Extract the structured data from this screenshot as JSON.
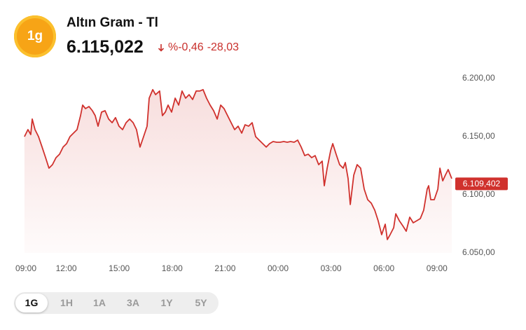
{
  "header": {
    "icon_text": "1g",
    "title": "Altın Gram - Tl",
    "price": "6.115,022",
    "change_percent": "%-0,46",
    "change": "-28,03"
  },
  "chart_data": {
    "type": "line",
    "color": "#d0312d",
    "grid": false,
    "xlim": [
      0,
      25
    ],
    "ylim": [
      6050,
      6200
    ],
    "xticks": [
      {
        "value": 0,
        "label": "09:00"
      },
      {
        "value": 3,
        "label": "12:00"
      },
      {
        "value": 6,
        "label": "15:00"
      },
      {
        "value": 9,
        "label": "18:00"
      },
      {
        "value": 12,
        "label": "21:00"
      },
      {
        "value": 15,
        "label": "00:00"
      },
      {
        "value": 18,
        "label": "03:00"
      },
      {
        "value": 21,
        "label": "06:00"
      },
      {
        "value": 24,
        "label": "09:00"
      }
    ],
    "yticks": [
      {
        "value": 6200,
        "label": "6.200,00"
      },
      {
        "value": 6150,
        "label": "6.150,00"
      },
      {
        "value": 6100,
        "label": "6.100,00"
      },
      {
        "value": 6050,
        "label": "6.050,00"
      }
    ],
    "current": {
      "value": 6109.402,
      "label": "6.109,402"
    },
    "series": [
      {
        "color": "#d0312d",
        "x": [
          0.63,
          0.83,
          0.99,
          1.07,
          1.23,
          1.43,
          1.63,
          1.83,
          2.02,
          2.22,
          2.42,
          2.62,
          2.82,
          3.02,
          3.21,
          3.41,
          3.61,
          3.81,
          3.93,
          4.09,
          4.29,
          4.48,
          4.64,
          4.8,
          5.0,
          5.2,
          5.4,
          5.6,
          5.79,
          5.99,
          6.19,
          6.39,
          6.59,
          6.79,
          6.98,
          7.18,
          7.38,
          7.58,
          7.7,
          7.9,
          8.06,
          8.29,
          8.45,
          8.61,
          8.77,
          8.97,
          9.17,
          9.37,
          9.56,
          9.76,
          9.96,
          10.16,
          10.36,
          10.56,
          10.75,
          10.95,
          11.15,
          11.35,
          11.55,
          11.75,
          11.94,
          12.14,
          12.34,
          12.54,
          12.74,
          12.94,
          13.13,
          13.33,
          13.53,
          13.73,
          13.93,
          14.13,
          14.33,
          14.52,
          14.72,
          14.92,
          15.12,
          15.32,
          15.52,
          15.71,
          15.91,
          16.11,
          16.31,
          16.51,
          16.71,
          16.9,
          17.1,
          17.3,
          17.5,
          17.62,
          17.78,
          17.98,
          18.1,
          18.29,
          18.49,
          18.69,
          18.81,
          18.97,
          19.09,
          19.29,
          19.48,
          19.68,
          19.88,
          20.08,
          20.28,
          20.48,
          20.67,
          20.87,
          21.07,
          21.19,
          21.35,
          21.55,
          21.67,
          21.87,
          22.06,
          22.26,
          22.46,
          22.66,
          22.86,
          23.06,
          23.25,
          23.45,
          23.53,
          23.65,
          23.85,
          24.05,
          24.17,
          24.33,
          24.48,
          24.64,
          24.84
        ],
        "values": [
          6150.0,
          6156.0,
          6151.8,
          6165.1,
          6156.0,
          6150.0,
          6141.0,
          6131.9,
          6122.9,
          6125.9,
          6131.9,
          6134.9,
          6141.0,
          6144.0,
          6150.0,
          6153.0,
          6156.0,
          6168.1,
          6177.1,
          6174.1,
          6175.9,
          6172.3,
          6168.1,
          6159.0,
          6171.1,
          6172.3,
          6165.1,
          6162.0,
          6166.3,
          6159.0,
          6156.0,
          6162.0,
          6165.1,
          6162.0,
          6156.0,
          6141.0,
          6150.0,
          6159.0,
          6183.1,
          6190.4,
          6186.1,
          6189.2,
          6168.1,
          6171.1,
          6177.1,
          6171.1,
          6183.1,
          6177.1,
          6189.2,
          6183.1,
          6186.1,
          6181.9,
          6189.2,
          6189.2,
          6190.4,
          6183.1,
          6177.1,
          6172.3,
          6165.1,
          6177.1,
          6174.1,
          6168.1,
          6162.0,
          6156.0,
          6159.0,
          6153.0,
          6160.2,
          6159.0,
          6162.0,
          6150.0,
          6147.0,
          6144.0,
          6141.0,
          6144.0,
          6145.8,
          6145.2,
          6145.2,
          6145.8,
          6145.2,
          6145.8,
          6145.2,
          6147.0,
          6141.0,
          6133.7,
          6134.9,
          6131.9,
          6133.7,
          6125.9,
          6128.9,
          6107.8,
          6122.9,
          6138.0,
          6144.0,
          6134.9,
          6125.9,
          6122.9,
          6127.7,
          6113.9,
          6091.6,
          6116.9,
          6125.9,
          6122.9,
          6104.8,
          6095.8,
          6092.8,
          6086.7,
          6077.7,
          6065.7,
          6074.7,
          6061.5,
          6065.7,
          6071.7,
          6083.7,
          6077.7,
          6073.5,
          6068.7,
          6080.7,
          6075.9,
          6077.7,
          6079.5,
          6086.7,
          6104.8,
          6107.8,
          6095.8,
          6095.8,
          6104.8,
          6122.9,
          6112.0,
          6116.9,
          6121.7,
          6113.9
        ]
      }
    ]
  },
  "periods": [
    {
      "label": "1G",
      "selected": true
    },
    {
      "label": "1H",
      "selected": false
    },
    {
      "label": "1A",
      "selected": false
    },
    {
      "label": "3A",
      "selected": false
    },
    {
      "label": "1Y",
      "selected": false
    },
    {
      "label": "5Y",
      "selected": false
    }
  ]
}
